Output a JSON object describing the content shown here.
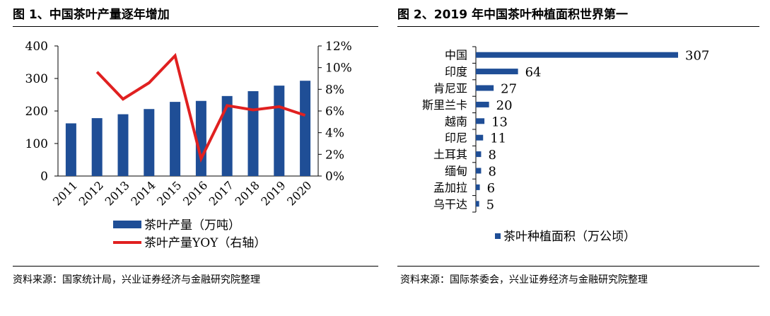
{
  "left_panel": {
    "title": "图 1、中国茶叶产量逐年增加",
    "source": "资料来源：国家统计局，兴业证券经济与金融研究院整理"
  },
  "right_panel": {
    "title": "图 2、2019 年中国茶叶种植面积世界第一",
    "source": "资料来源：国际茶委会，兴业证券经济与金融研究院整理"
  },
  "chart_data": [
    {
      "type": "bar",
      "categories": [
        "2011",
        "2012",
        "2013",
        "2014",
        "2015",
        "2016",
        "2017",
        "2018",
        "2019",
        "2020"
      ],
      "series": [
        {
          "name": "茶叶产量（万吨）",
          "type": "bar",
          "axis": "left",
          "color": "#1F4E96",
          "values": [
            162,
            178,
            190,
            206,
            228,
            231,
            246,
            261,
            278,
            293
          ]
        },
        {
          "name": "茶叶产量YOY（右轴）",
          "type": "line",
          "axis": "right",
          "color": "#E02020",
          "values": [
            null,
            9.6,
            7.1,
            8.6,
            11.1,
            1.6,
            6.5,
            6.1,
            6.4,
            5.6
          ]
        }
      ],
      "y_left": {
        "lim": [
          0,
          400
        ],
        "ticks": [
          "0",
          "100",
          "200",
          "300",
          "400"
        ]
      },
      "y_right": {
        "lim": [
          0,
          12
        ],
        "ticks": [
          "0%",
          "2%",
          "4%",
          "6%",
          "8%",
          "10%",
          "12%"
        ]
      },
      "legend_position": "bottom"
    },
    {
      "type": "bar",
      "orientation": "horizontal",
      "categories": [
        "中国",
        "印度",
        "肯尼亚",
        "斯里兰卡",
        "越南",
        "印尼",
        "土耳其",
        "缅甸",
        "孟加拉",
        "乌干达"
      ],
      "series": [
        {
          "name": "茶叶种植面积（万公顷）",
          "color": "#1F4E96",
          "values": [
            307,
            64,
            27,
            20,
            13,
            11,
            8,
            8,
            6,
            5
          ]
        }
      ],
      "legend_position": "bottom"
    }
  ]
}
